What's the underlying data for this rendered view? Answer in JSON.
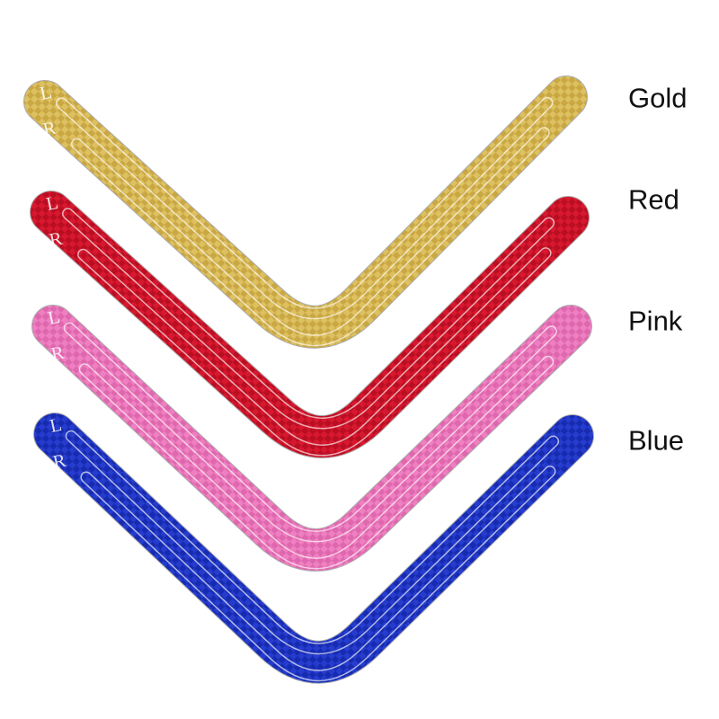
{
  "image_type": "product-photo",
  "background": "#ffffff",
  "label_color": "#111111",
  "cutline_color": "rgba(255,255,255,0.65)",
  "edge_color": "rgba(150,150,150,0.8)",
  "mark_color": "rgba(255,255,255,0.85)",
  "marks": {
    "left": "L",
    "right": "R"
  },
  "items": [
    {
      "label": "Gold",
      "base": "#D5B44F",
      "dark": "#BE9C39",
      "light": "#E6CB72"
    },
    {
      "label": "Red",
      "base": "#CE1026",
      "dark": "#A90D1E",
      "light": "#E02038"
    },
    {
      "label": "Pink",
      "base": "#E973B9",
      "dark": "#D75CA6",
      "light": "#F48BC9"
    },
    {
      "label": "Blue",
      "base": "#1C33C4",
      "dark": "#1224A0",
      "light": "#2E46D8"
    }
  ]
}
